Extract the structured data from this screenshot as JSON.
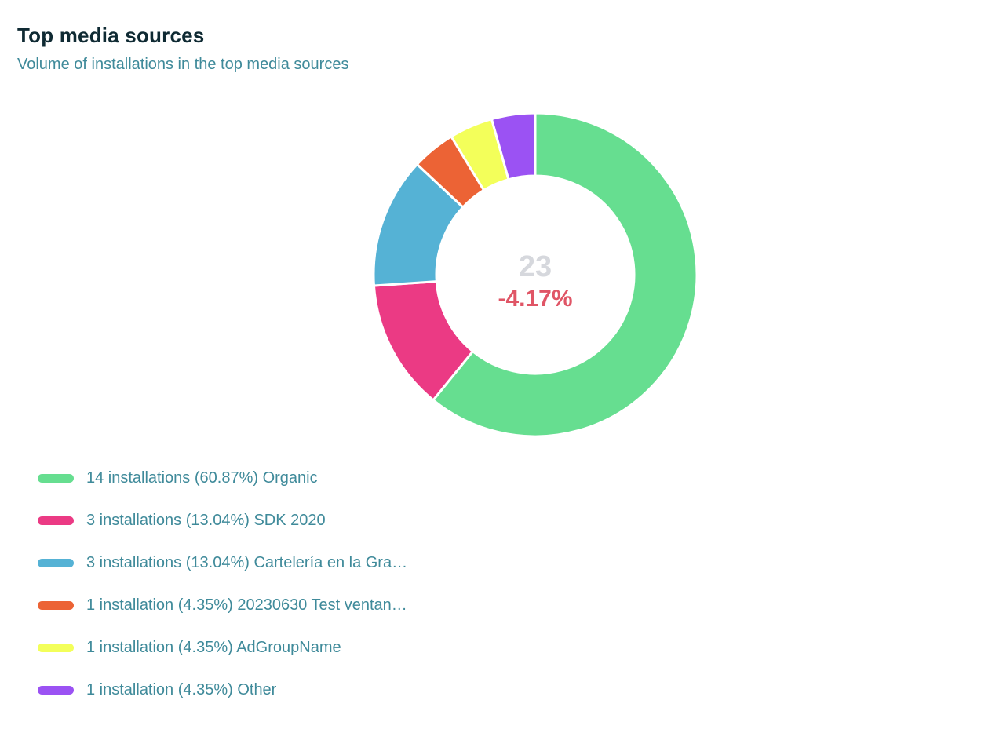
{
  "card": {
    "title": "Top media sources",
    "subtitle": "Volume of installations in the top media sources"
  },
  "chart_data": {
    "type": "pie",
    "donut": true,
    "total": "23",
    "change": "-4.17%",
    "series": [
      {
        "label": "14 installations (60.87%) Organic",
        "value": 14,
        "color": "#66de90"
      },
      {
        "label": "3 installations (13.04%) SDK 2020",
        "value": 3,
        "color": "#eb3a84"
      },
      {
        "label": "3 installations (13.04%) Cartelería en la Gra…",
        "value": 3,
        "color": "#55b2d5"
      },
      {
        "label": "1 installation (4.35%) 20230630 Test ventan…",
        "value": 1,
        "color": "#ec6335"
      },
      {
        "label": "1 installation (4.35%) AdGroupName",
        "value": 1,
        "color": "#f3ff5a"
      },
      {
        "label": "1 installation (4.35%) Other",
        "value": 1,
        "color": "#9b52f3"
      }
    ],
    "legend_position": "bottom-left"
  },
  "colors": {
    "title": "#0f2a33",
    "subtitle": "#3f8a9a",
    "total": "#d6d8dd",
    "change_negative": "#e05566"
  }
}
